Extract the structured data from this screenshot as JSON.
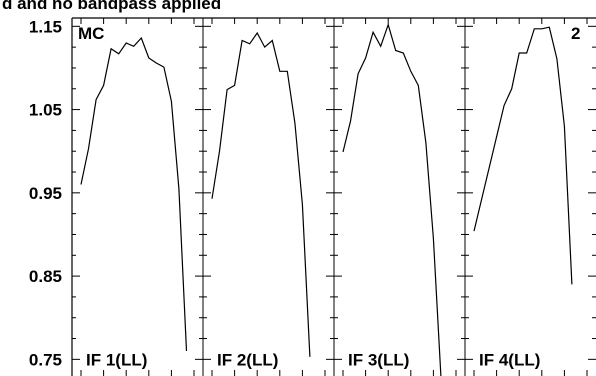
{
  "chart_data": {
    "type": "line",
    "title": "d and no bandpass applied",
    "ylim": [
      0.73,
      1.16
    ],
    "y_ticks": [
      "0.75",
      "0.85",
      "0.95",
      "1.05",
      "1.15"
    ],
    "top_left_label": "MC",
    "top_right_label": "2",
    "panels": [
      {
        "label": "IF 1(LL)",
        "x": [
          0,
          1,
          2,
          3,
          4,
          5,
          6,
          7,
          8,
          9,
          10,
          11,
          12,
          13,
          14,
          15
        ],
        "values": [
          0.96,
          1.003,
          1.062,
          1.079,
          1.123,
          1.117,
          1.13,
          1.126,
          1.136,
          1.112,
          1.106,
          1.101,
          1.06,
          0.955,
          0.76,
          null
        ]
      },
      {
        "label": "IF 2(LL)",
        "x": [
          0,
          1,
          2,
          3,
          4,
          5,
          6,
          7,
          8,
          9,
          10,
          11,
          12,
          13,
          14,
          15
        ],
        "values": [
          0.943,
          1.0,
          1.074,
          1.079,
          1.133,
          1.129,
          1.142,
          1.125,
          1.133,
          1.096,
          1.096,
          1.034,
          0.936,
          0.753,
          null,
          null
        ]
      },
      {
        "label": "IF 3(LL)",
        "x": [
          0,
          1,
          2,
          3,
          4,
          5,
          6,
          7,
          8,
          9,
          10,
          11,
          12,
          13,
          14,
          15
        ],
        "values": [
          0.999,
          1.036,
          1.093,
          1.112,
          1.143,
          1.126,
          1.152,
          1.121,
          1.118,
          1.096,
          1.079,
          1.01,
          0.895,
          0.73,
          null,
          null
        ]
      },
      {
        "label": "IF 4(LL)",
        "x": [
          0,
          1,
          2,
          3,
          4,
          5,
          6,
          7,
          8,
          9,
          10,
          11,
          12,
          13,
          14,
          15
        ],
        "values": [
          0.904,
          null,
          null,
          null,
          1.055,
          1.075,
          1.118,
          1.118,
          1.147,
          1.147,
          1.149,
          1.111,
          1.03,
          0.84,
          null,
          null
        ]
      }
    ]
  }
}
